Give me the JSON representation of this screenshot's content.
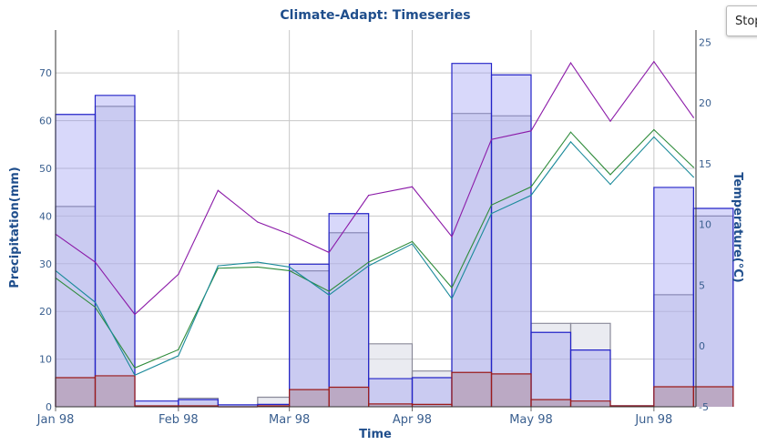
{
  "stop_button": {
    "label": "Stop"
  },
  "chart_data": {
    "title": "Climate-Adapt: Timeseries",
    "xlabel": "Time",
    "ylabel_left": "Precipitation(mm)",
    "ylabel_right": "Temperature(°C)",
    "ylim_left": [
      0,
      79
    ],
    "ylim_right": [
      -5,
      26
    ],
    "y_ticks_left": [
      0,
      10,
      20,
      30,
      40,
      50,
      60,
      70
    ],
    "y_ticks_right": [
      -5,
      0,
      5,
      10,
      15,
      20,
      25
    ],
    "x_range": [
      "1998-01-01",
      "1998-06-20"
    ],
    "x_ticks": [
      {
        "date": "1998-01-01",
        "label": "Jan 98"
      },
      {
        "date": "1998-02-01",
        "label": "Feb 98"
      },
      {
        "date": "1998-03-01",
        "label": "Mar 98"
      },
      {
        "date": "1998-04-01",
        "label": "Apr 98"
      },
      {
        "date": "1998-05-01",
        "label": "May 98"
      },
      {
        "date": "1998-06-01",
        "label": "Jun 98"
      }
    ],
    "grid": true,
    "bar_periods": [
      "1998-01-01",
      "1998-01-11",
      "1998-01-21",
      "1998-02-01",
      "1998-02-11",
      "1998-02-21",
      "1998-03-01",
      "1998-03-11",
      "1998-03-21",
      "1998-04-01",
      "1998-04-11",
      "1998-04-21",
      "1998-05-01",
      "1998-05-11",
      "1998-05-21",
      "1998-06-01",
      "1998-06-11",
      "1998-06-21"
    ],
    "series": [
      {
        "type": "step-area",
        "axis": "left",
        "stroke": "#8a8a99",
        "fill": "#d0d3e1",
        "fill_opacity": 0.45,
        "values": [
          42,
          63,
          0,
          1.8,
          0,
          2,
          28.5,
          36.5,
          13.2,
          7.5,
          61.5,
          61,
          17.5,
          17.5,
          0.2,
          23.5,
          40,
          0
        ]
      },
      {
        "type": "step-area",
        "axis": "left",
        "stroke": "#2323c8",
        "fill": "#8f8ff0",
        "fill_opacity": 0.35,
        "values": [
          61.3,
          65.3,
          1.2,
          1.5,
          0.4,
          0.5,
          29.9,
          40.5,
          5.9,
          6.1,
          72,
          69.6,
          15.6,
          11.9,
          0.2,
          46,
          41.6,
          0
        ]
      },
      {
        "type": "step-area",
        "axis": "left",
        "stroke": "#9b1b1b",
        "fill": "#b59ab0",
        "fill_opacity": 0.7,
        "values": [
          6.1,
          6.5,
          0.2,
          0.2,
          0,
          0.2,
          3.6,
          4.1,
          0.6,
          0.5,
          7.2,
          6.9,
          1.5,
          1.2,
          0.2,
          4.2,
          4.2,
          0
        ]
      },
      {
        "type": "line",
        "axis": "right",
        "stroke": "#8b1aa8",
        "x": [
          "1998-01-01",
          "1998-01-11",
          "1998-01-21",
          "1998-02-01",
          "1998-02-11",
          "1998-02-21",
          "1998-03-01",
          "1998-03-11",
          "1998-03-21",
          "1998-04-01",
          "1998-04-11",
          "1998-04-21",
          "1998-05-01",
          "1998-05-11",
          "1998-05-21",
          "1998-06-01",
          "1998-06-11"
        ],
        "y": [
          9.2,
          6.9,
          2.6,
          5.9,
          12.8,
          10.2,
          9.2,
          7.7,
          12.4,
          13.1,
          9.0,
          17.0,
          17.7,
          23.3,
          18.5,
          23.4,
          18.8
        ]
      },
      {
        "type": "line",
        "axis": "right",
        "stroke": "#2e8b3a",
        "x": [
          "1998-01-01",
          "1998-01-11",
          "1998-01-21",
          "1998-02-01",
          "1998-02-11",
          "1998-02-21",
          "1998-03-01",
          "1998-03-11",
          "1998-03-21",
          "1998-04-01",
          "1998-04-11",
          "1998-04-21",
          "1998-05-01",
          "1998-05-11",
          "1998-05-21",
          "1998-06-01",
          "1998-06-11"
        ],
        "y": [
          5.6,
          3.2,
          -1.8,
          -0.3,
          6.4,
          6.5,
          6.2,
          4.5,
          6.9,
          8.6,
          4.8,
          11.6,
          13.1,
          17.6,
          14.1,
          17.8,
          14.7
        ]
      },
      {
        "type": "line",
        "axis": "right",
        "stroke": "#1a8a9a",
        "x": [
          "1998-01-01",
          "1998-01-11",
          "1998-01-21",
          "1998-02-01",
          "1998-02-11",
          "1998-02-21",
          "1998-03-01",
          "1998-03-11",
          "1998-03-21",
          "1998-04-01",
          "1998-04-11",
          "1998-04-21",
          "1998-05-01",
          "1998-05-11",
          "1998-05-21",
          "1998-06-01",
          "1998-06-11"
        ],
        "y": [
          6.2,
          3.6,
          -2.4,
          -0.8,
          6.6,
          6.9,
          6.5,
          4.2,
          6.6,
          8.4,
          3.9,
          10.9,
          12.4,
          16.8,
          13.3,
          17.2,
          13.9
        ]
      }
    ]
  }
}
